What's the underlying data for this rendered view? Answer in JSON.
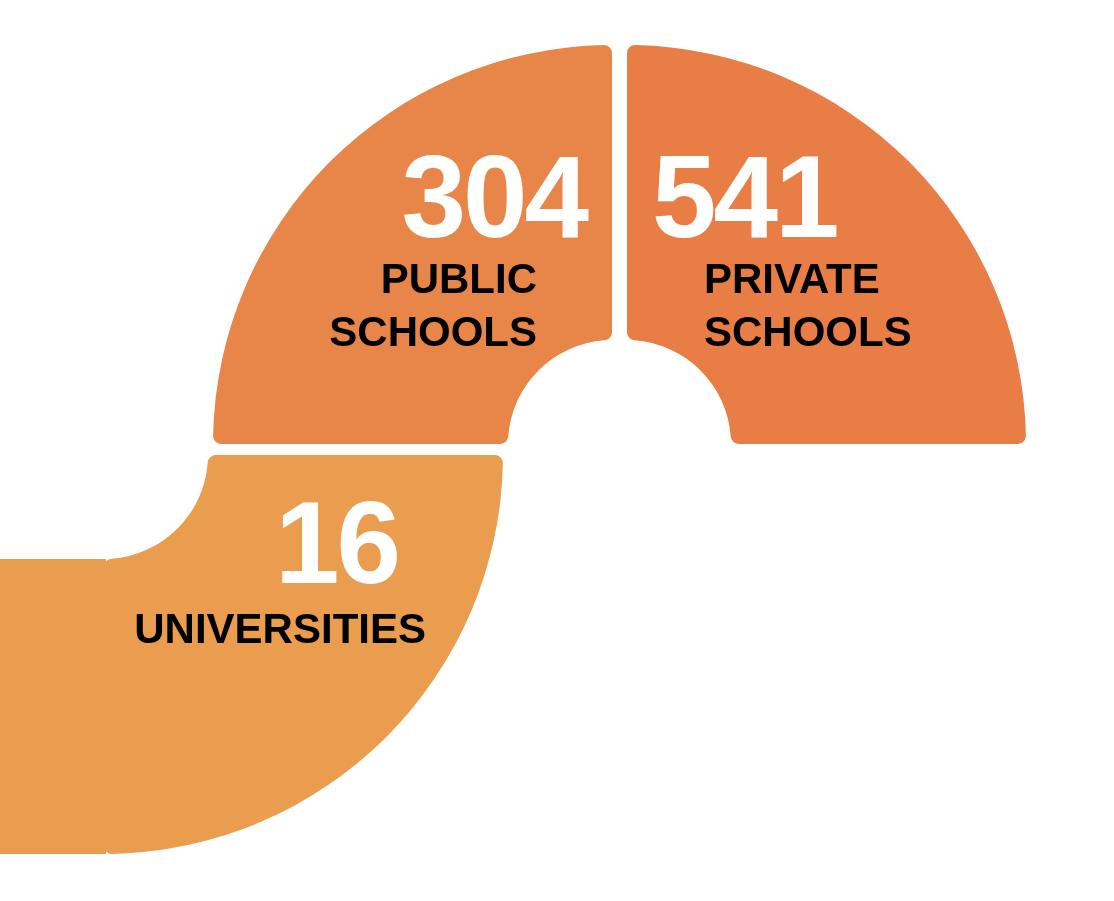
{
  "chart_data": {
    "type": "other",
    "categories": [
      "PUBLIC SCHOOLS",
      "PRIVATE SCHOOLS",
      "UNIVERSITIES"
    ],
    "values": [
      304,
      541,
      16
    ],
    "colors": [
      "#e8864a",
      "#e87d45",
      "#ea9c4f"
    ],
    "data_labels": true
  }
}
